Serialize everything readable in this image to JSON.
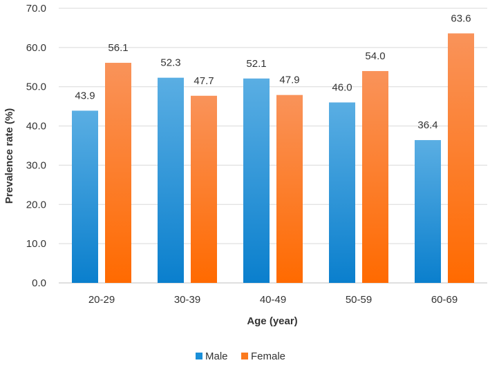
{
  "chart_data": {
    "type": "bar",
    "title": "",
    "xlabel": "Age (year)",
    "ylabel": "Prevalence rate (%)",
    "ylim": [
      0,
      70
    ],
    "yticks": [
      "0.0",
      "10.0",
      "20.0",
      "30.0",
      "40.0",
      "50.0",
      "60.0",
      "70.0"
    ],
    "grid": true,
    "legend_position": "bottom-center",
    "categories": [
      "20-29",
      "30-39",
      "40-49",
      "50-59",
      "60-69"
    ],
    "series": [
      {
        "name": "Male",
        "color": "#1a8fd8",
        "values": [
          43.9,
          52.3,
          52.1,
          46.0,
          36.4
        ],
        "labels": [
          "43.9",
          "52.3",
          "52.1",
          "46.0",
          "36.4"
        ]
      },
      {
        "name": "Female",
        "color": "#fb7a1e",
        "values": [
          56.1,
          47.7,
          47.9,
          54.0,
          63.6
        ],
        "labels": [
          "56.1",
          "47.7",
          "47.9",
          "54.0",
          "63.6"
        ]
      }
    ]
  }
}
